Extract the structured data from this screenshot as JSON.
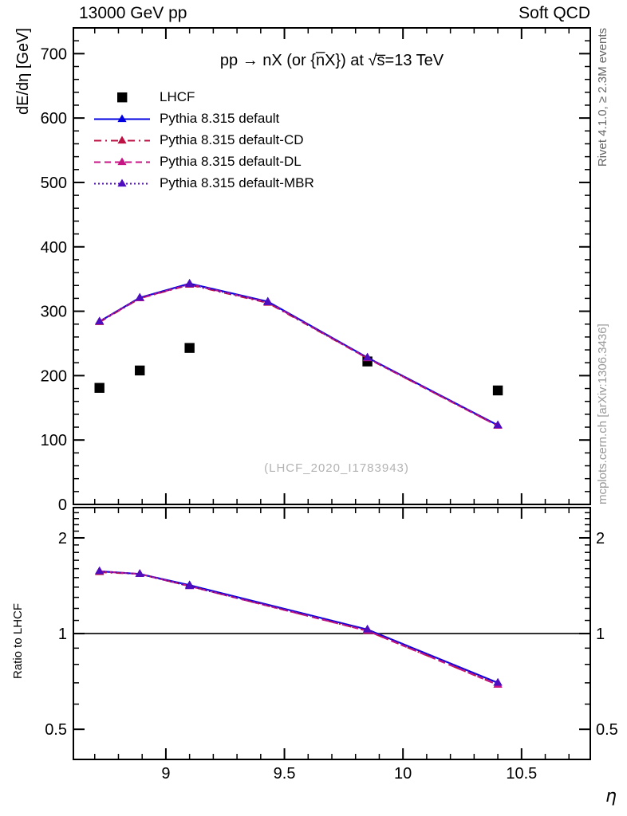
{
  "page": {
    "header_left": "13000 GeV pp",
    "header_right": "Soft QCD",
    "right_label_top": "Rivet 4.1.0, ≥ 2.3M events",
    "right_label_bottom": "mcplots.cern.ch [arXiv:1306.3436]",
    "watermark": "(LHCF_2020_I1783943)"
  },
  "chart_data": {
    "type": "line",
    "title": "pp → nX (or {n̅X}) at √s̅=13 TeV",
    "xlabel": "η",
    "ylabel_main": "dE/dη [GeV]",
    "ylabel_ratio": "Ratio to LHCF",
    "legend_position": "top-left-inside",
    "grid": false,
    "x_range": [
      8.61,
      10.79
    ],
    "x_ticks_major": [
      9,
      9.5,
      10,
      10.5
    ],
    "x_tick_labels": [
      "9",
      "9.5",
      "10",
      "10.5"
    ],
    "x_tick_minor_step": 0.1,
    "main_panel": {
      "y_range": [
        0,
        740
      ],
      "y_ticks_major": [
        0,
        100,
        200,
        300,
        400,
        500,
        600,
        700
      ],
      "y_tick_labels": [
        "0",
        "100",
        "200",
        "300",
        "400",
        "500",
        "600",
        "700"
      ],
      "y_tick_minor_step": 20
    },
    "ratio_panel": {
      "scale": "log",
      "y_range": [
        0.402,
        2.49
      ],
      "y_ticks_major": [
        0.5,
        1,
        2
      ],
      "y_tick_labels": [
        "0.5",
        "1",
        "2"
      ],
      "y_ticks_minor": [
        0.6,
        0.7,
        0.8,
        0.9,
        1.1,
        1.2,
        1.3,
        1.4,
        1.5,
        1.6,
        1.7,
        1.8,
        1.9,
        2.1,
        2.2,
        2.3,
        2.4
      ],
      "reference_line": 1
    },
    "data_series": {
      "name": "LHCF",
      "marker": "square",
      "color": "#000000",
      "x": [
        8.72,
        8.89,
        9.1,
        9.85,
        10.4
      ],
      "y": [
        181,
        208,
        243,
        222,
        177
      ]
    },
    "mc_series": [
      {
        "name": "Pythia 8.315 default",
        "color": "#0000e0",
        "style": "solid",
        "marker": "triangle",
        "x": [
          8.72,
          8.89,
          9.1,
          9.43,
          9.85,
          10.4
        ],
        "y": [
          284,
          321,
          343,
          315,
          228,
          123
        ],
        "ratio_x": [
          8.72,
          8.89,
          9.1,
          9.85,
          10.4
        ],
        "ratio": [
          1.57,
          1.54,
          1.42,
          1.03,
          0.7
        ]
      },
      {
        "name": "Pythia 8.315 default-CD",
        "color": "#bd1144",
        "style": "dashdot",
        "marker": "triangle",
        "x": [
          8.72,
          8.89,
          9.1,
          9.43,
          9.85,
          10.4
        ],
        "y": [
          283,
          320,
          341,
          313,
          227,
          122
        ],
        "ratio_x": [
          8.72,
          8.89,
          9.1,
          9.85,
          10.4
        ],
        "ratio": [
          1.56,
          1.54,
          1.41,
          1.02,
          0.69
        ]
      },
      {
        "name": "Pythia 8.315 default-DL",
        "color": "#c71585",
        "style": "dashed",
        "marker": "triangle",
        "x": [
          8.72,
          8.89,
          9.1,
          9.43,
          9.85,
          10.4
        ],
        "y": [
          284,
          320,
          342,
          314,
          227,
          122
        ],
        "ratio_x": [
          8.72,
          8.89,
          9.1,
          9.85,
          10.4
        ],
        "ratio": [
          1.57,
          1.54,
          1.41,
          1.02,
          0.69
        ]
      },
      {
        "name": "Pythia 8.315 default-MBR",
        "color": "#4e0dbe",
        "style": "dotted",
        "marker": "triangle",
        "x": [
          8.72,
          8.89,
          9.1,
          9.43,
          9.85,
          10.4
        ],
        "y": [
          284,
          321,
          342,
          314,
          228,
          123
        ],
        "ratio_x": [
          8.72,
          8.89,
          9.1,
          9.85,
          10.4
        ],
        "ratio": [
          1.57,
          1.54,
          1.41,
          1.03,
          0.7
        ]
      }
    ]
  }
}
